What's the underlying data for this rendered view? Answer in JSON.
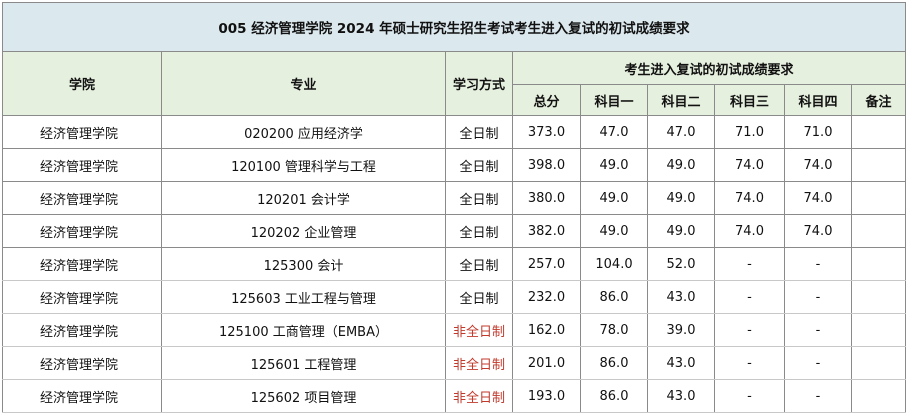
{
  "title": "005 经济管理学院 2024 年硕士研究生招生考试考生进入复试的初试成绩要求",
  "header": {
    "college": "学院",
    "major": "专业",
    "study_mode": "学习方式",
    "group": "考生进入复试的初试成绩要求",
    "total": "总分",
    "subject1": "科目一",
    "subject2": "科目二",
    "subject3": "科目三",
    "subject4": "科目四",
    "remarks": "备注"
  },
  "rows": [
    {
      "college": "经济管理学院",
      "major": "020200 应用经济学",
      "mode": "全日制",
      "total": "373.0",
      "s1": "47.0",
      "s2": "47.0",
      "s3": "71.0",
      "s4": "71.0",
      "remarks": ""
    },
    {
      "college": "经济管理学院",
      "major": "120100 管理科学与工程",
      "mode": "全日制",
      "total": "398.0",
      "s1": "49.0",
      "s2": "49.0",
      "s3": "74.0",
      "s4": "74.0",
      "remarks": ""
    },
    {
      "college": "经济管理学院",
      "major": "120201 会计学",
      "mode": "全日制",
      "total": "380.0",
      "s1": "49.0",
      "s2": "49.0",
      "s3": "74.0",
      "s4": "74.0",
      "remarks": ""
    },
    {
      "college": "经济管理学院",
      "major": "120202 企业管理",
      "mode": "全日制",
      "total": "382.0",
      "s1": "49.0",
      "s2": "49.0",
      "s3": "74.0",
      "s4": "74.0",
      "remarks": ""
    },
    {
      "college": "经济管理学院",
      "major": "125300 会计",
      "mode": "全日制",
      "total": "257.0",
      "s1": "104.0",
      "s2": "52.0",
      "s3": "-",
      "s4": "-",
      "remarks": ""
    },
    {
      "college": "经济管理学院",
      "major": "125603 工业工程与管理",
      "mode": "全日制",
      "total": "232.0",
      "s1": "86.0",
      "s2": "43.0",
      "s3": "-",
      "s4": "-",
      "remarks": ""
    },
    {
      "college": "经济管理学院",
      "major": "125100 工商管理（EMBA）",
      "mode": "非全日制",
      "total": "162.0",
      "s1": "78.0",
      "s2": "39.0",
      "s3": "-",
      "s4": "-",
      "remarks": ""
    },
    {
      "college": "经济管理学院",
      "major": "125601 工程管理",
      "mode": "非全日制",
      "total": "201.0",
      "s1": "86.0",
      "s2": "43.0",
      "s3": "-",
      "s4": "-",
      "remarks": ""
    },
    {
      "college": "经济管理学院",
      "major": "125602 项目管理",
      "mode": "非全日制",
      "total": "193.0",
      "s1": "86.0",
      "s2": "43.0",
      "s3": "-",
      "s4": "-",
      "remarks": ""
    }
  ],
  "colors": {
    "title_bg": "#dbe8ee",
    "header_bg": "#e6f0de",
    "part_time_text": "#c0392b",
    "border": "#8a8a8a"
  }
}
